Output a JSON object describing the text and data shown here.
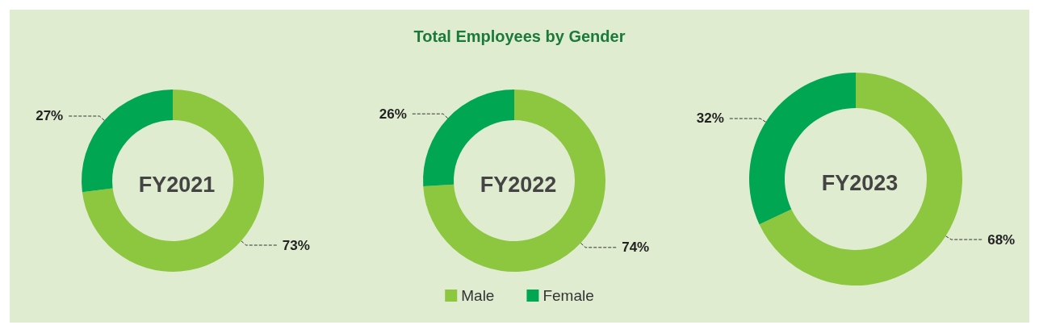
{
  "chart_data": {
    "type": "donut",
    "title": "Total Employees by Gender",
    "categories": [
      "Male",
      "Female"
    ],
    "colors": [
      "#8dc63f",
      "#00a651"
    ],
    "legend": "bottom",
    "series": [
      {
        "name": "FY2021",
        "values": [
          73,
          27
        ],
        "value_labels": [
          "73%",
          "27%"
        ]
      },
      {
        "name": "FY2022",
        "values": [
          74,
          26
        ],
        "value_labels": [
          "74%",
          "26%"
        ]
      },
      {
        "name": "FY2023",
        "values": [
          68,
          32
        ],
        "value_labels": [
          "68%",
          "32%"
        ]
      }
    ]
  }
}
